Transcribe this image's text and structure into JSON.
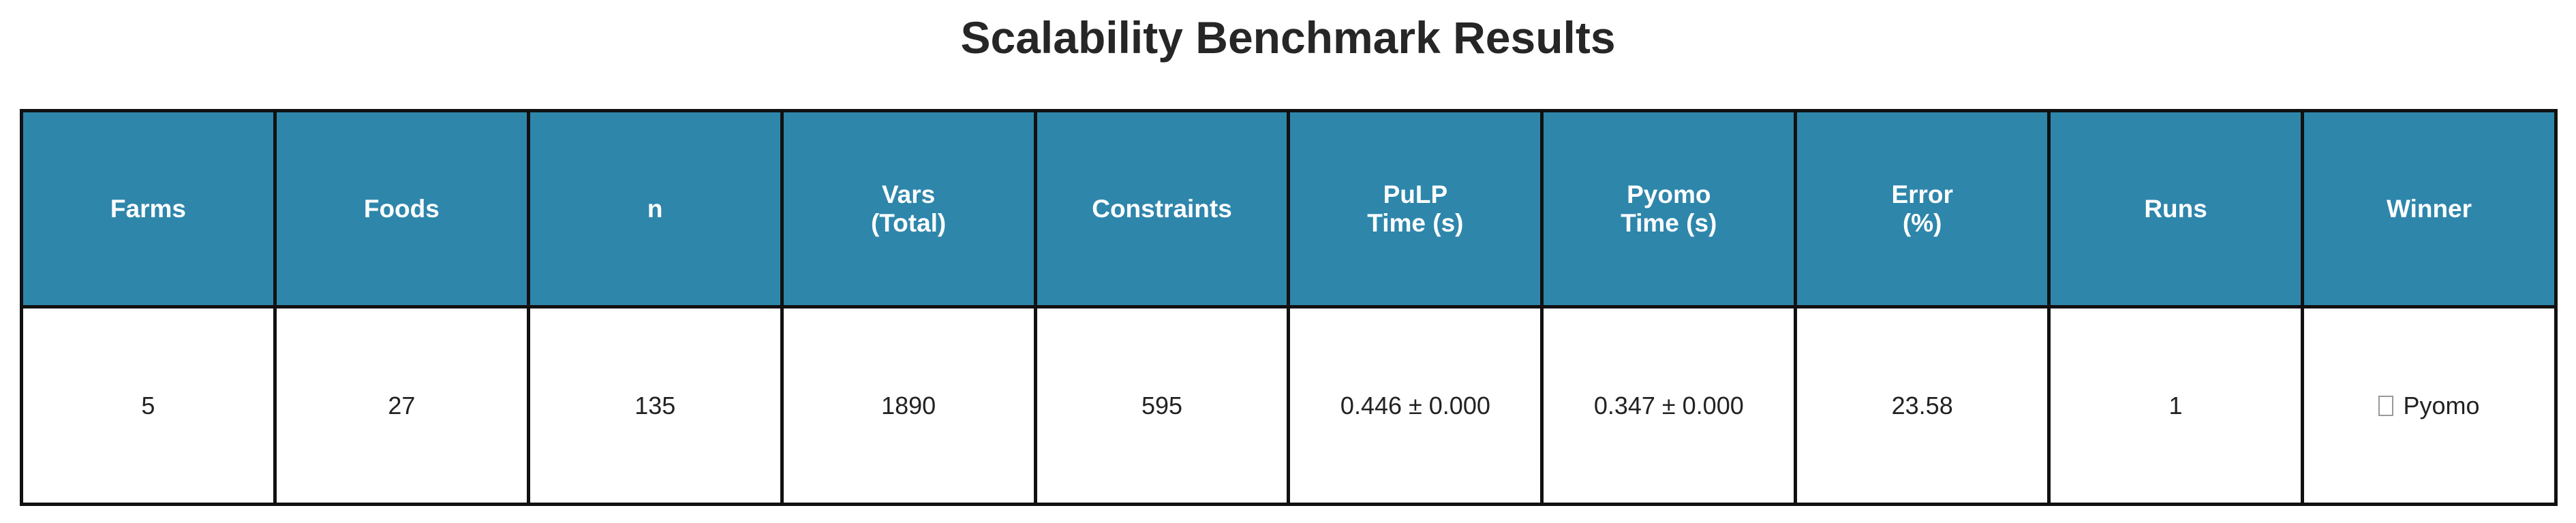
{
  "title": "Scalability Benchmark Results",
  "chart_data": {
    "type": "table",
    "title": "Scalability Benchmark Results",
    "columns": [
      "Farms",
      "Foods",
      "n",
      "Vars\n(Total)",
      "Constraints",
      "PuLP\nTime (s)",
      "Pyomo\nTime (s)",
      "Error\n(%)",
      "Runs",
      "Winner"
    ],
    "rows": [
      [
        "5",
        "27",
        "135",
        "1890",
        "595",
        "0.446 ± 0.000",
        "0.347 ± 0.000",
        "23.58",
        "1",
        "Pyomo"
      ]
    ],
    "winner_icon": "trophy-icon",
    "header_color": "#2e86ab"
  }
}
